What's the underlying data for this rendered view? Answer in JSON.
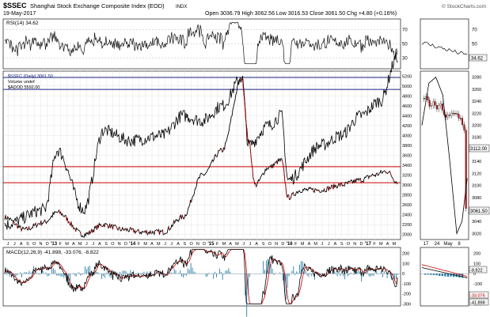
{
  "header": {
    "symbol": "$SSEC",
    "name": "Shanghai Stock Exchange Composite Index (EOD)",
    "exchange": "INDX",
    "date": "19-May-2017",
    "ohlc": "Open 3036.79  High 3062.56  Low 3016.53  Close 3061.50  Chg +4.80 (+0.16%)",
    "watermark": "© StockCharts.com"
  },
  "rsi": {
    "label": "RSI(14) 34.62",
    "right_badge": "34.62",
    "ticks": [
      "70",
      "50",
      "30"
    ]
  },
  "price": {
    "legend": [
      "$SSEC (Daily) 3061.50",
      "Volume undef",
      "$ADOD 5592.00"
    ],
    "y_ticks": [
      "5200",
      "5000",
      "4800",
      "4600",
      "4400",
      "4200",
      "4000",
      "3800",
      "3600",
      "3400",
      "3200",
      "3000",
      "2800",
      "2600",
      "2400",
      "2200",
      "2000"
    ],
    "zoom_ticks": [
      "3280",
      "3260",
      "3240",
      "3220",
      "3200",
      "3180",
      "3160",
      "3140",
      "3120",
      "3100",
      "3080",
      "3060",
      "3040",
      "3020"
    ],
    "zoom_badges": [
      "3112.00",
      "3061.50"
    ],
    "hlines": [
      5172,
      4930,
      3370,
      3048
    ],
    "colors": {
      "price_line": "#000000",
      "breadth_line": "#000000",
      "breadth_red": "#cc0000",
      "blue_band": "#1a237e",
      "red_band": "#cc0000"
    }
  },
  "x_labels": [
    "J",
    "J",
    "A",
    "S",
    "O",
    "N",
    "D",
    "'13",
    "F",
    "M",
    "A",
    "M",
    "J",
    "J",
    "A",
    "S",
    "O",
    "N",
    "D",
    "'14",
    "F",
    "M",
    "A",
    "M",
    "J",
    "J",
    "A",
    "S",
    "O",
    "N",
    "D",
    "'15",
    "F",
    "M",
    "A",
    "M",
    "J",
    "J",
    "A",
    "S",
    "O",
    "N",
    "D",
    "'16",
    "F",
    "M",
    "A",
    "M",
    "J",
    "J",
    "A",
    "S",
    "O",
    "N",
    "D",
    "'17",
    "F",
    "M",
    "A",
    "M"
  ],
  "zoom_x_labels": [
    "17",
    "24",
    "May",
    "8"
  ],
  "macd": {
    "label": "MACD(12,26,9) -41.898, -33.076, -8.822",
    "ticks": [
      "200",
      "100",
      "0",
      "-100",
      "-200",
      "-300"
    ],
    "badges": [
      "-8.822",
      "-33.076",
      "-41.898"
    ]
  },
  "chart_data": {
    "type": "line",
    "title": "$SSEC Shanghai Stock Exchange Composite Index (EOD)",
    "x_range": [
      "2012-06",
      "2017-05-19"
    ],
    "series": [
      {
        "name": "$SSEC (Daily)",
        "x": [
          "2012-06",
          "2012-09",
          "2012-12",
          "2013-02",
          "2013-06",
          "2013-09",
          "2013-12",
          "2014-03",
          "2014-06",
          "2014-09",
          "2014-12",
          "2015-03",
          "2015-06",
          "2015-07",
          "2015-08",
          "2015-10",
          "2015-12",
          "2016-01",
          "2016-03",
          "2016-06",
          "2016-09",
          "2016-12",
          "2017-02",
          "2017-04",
          "2017-05-19"
        ],
        "values": [
          2350,
          2100,
          2250,
          2450,
          2000,
          2200,
          2100,
          2050,
          2050,
          2350,
          3200,
          3700,
          5150,
          3900,
          3000,
          3350,
          3500,
          2750,
          2900,
          2900,
          3000,
          3100,
          3200,
          3280,
          3061.5
        ]
      },
      {
        "name": "$ADOD",
        "x": [
          "2012-06",
          "2012-12",
          "2013-02",
          "2013-06",
          "2013-09",
          "2014-01",
          "2014-06",
          "2014-09",
          "2014-12",
          "2015-03",
          "2015-06",
          "2015-07",
          "2015-10",
          "2015-12",
          "2016-01",
          "2016-06",
          "2016-09",
          "2016-12",
          "2017-03",
          "2017-05-19"
        ],
        "values": [
          2200,
          2500,
          3700,
          2500,
          4100,
          3900,
          4000,
          4400,
          4300,
          4600,
          5170,
          3800,
          4200,
          4400,
          3100,
          3800,
          4000,
          4400,
          4700,
          5592
        ]
      }
    ],
    "rsi": {
      "period": 14,
      "last": 34.62,
      "levels": [
        70,
        50,
        30
      ]
    },
    "macd": {
      "params": [
        12,
        26,
        9
      ],
      "macd": -41.898,
      "signal": -33.076,
      "histogram": -8.822
    },
    "price_ylim": [
      1900,
      5300
    ],
    "grid": true
  }
}
